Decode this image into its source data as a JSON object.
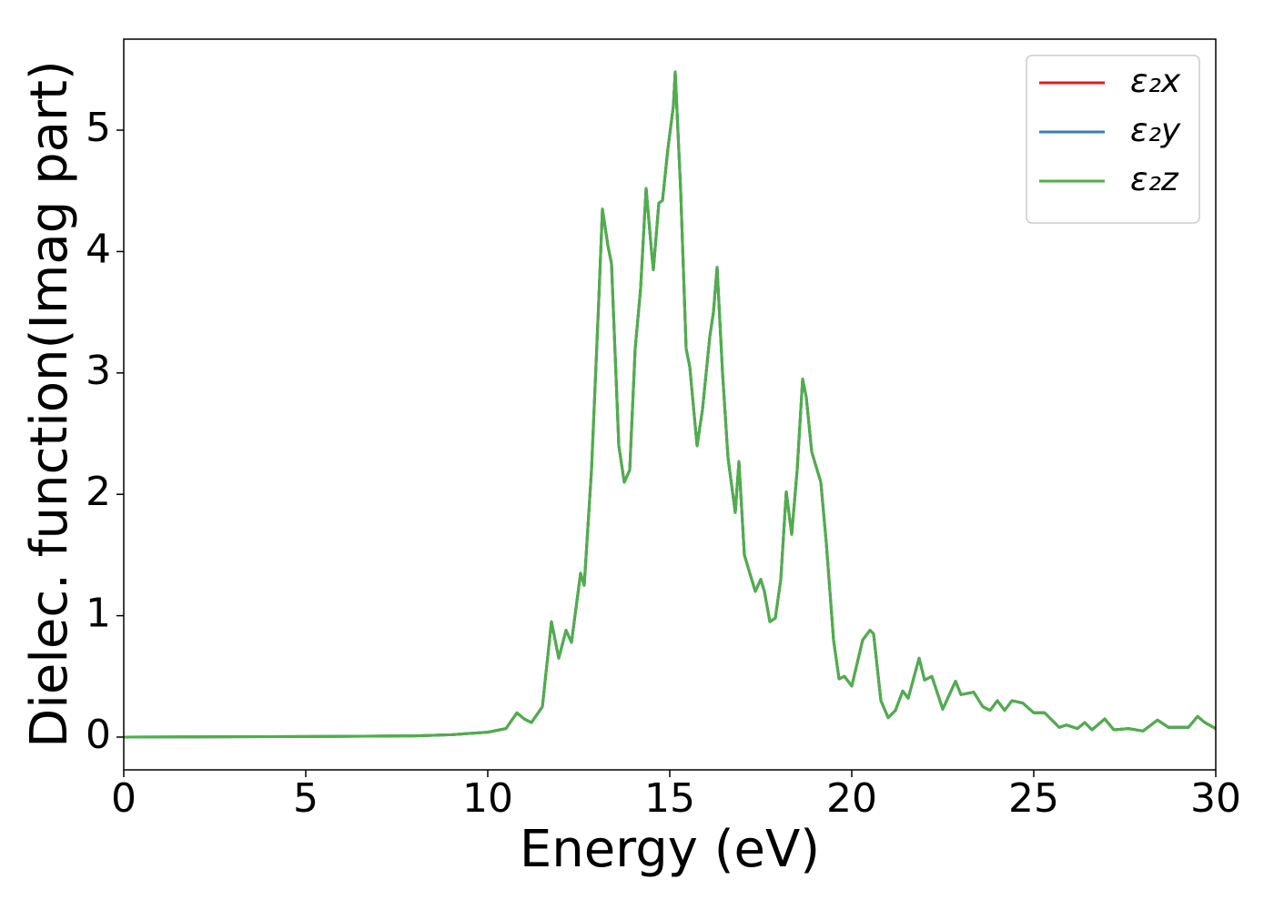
{
  "chart_data": {
    "type": "line",
    "x_label": "Energy (eV)",
    "y_label": "Dielec. function(Imag part)",
    "x": [
      0,
      5,
      8,
      9,
      10,
      10.5,
      10.8,
      11.0,
      11.2,
      11.5,
      11.75,
      11.95,
      12.15,
      12.3,
      12.55,
      12.65,
      12.85,
      13.05,
      13.15,
      13.3,
      13.4,
      13.6,
      13.75,
      13.9,
      14.05,
      14.2,
      14.35,
      14.5,
      14.55,
      14.7,
      14.8,
      14.95,
      15.1,
      15.15,
      15.3,
      15.45,
      15.55,
      15.75,
      15.9,
      16.1,
      16.2,
      16.3,
      16.45,
      16.6,
      16.8,
      16.9,
      17.05,
      17.2,
      17.35,
      17.5,
      17.6,
      17.75,
      17.9,
      18.05,
      18.2,
      18.35,
      18.5,
      18.65,
      18.75,
      18.9,
      19.15,
      19.3,
      19.5,
      19.65,
      19.8,
      20.0,
      20.3,
      20.5,
      20.6,
      20.8,
      21.0,
      21.2,
      21.4,
      21.55,
      21.85,
      22.0,
      22.2,
      22.5,
      22.85,
      23.0,
      23.35,
      23.6,
      23.8,
      24.0,
      24.2,
      24.4,
      24.7,
      25.0,
      25.3,
      25.7,
      25.9,
      26.2,
      26.4,
      26.6,
      26.95,
      27.2,
      27.6,
      28.0,
      28.4,
      28.7,
      29.0,
      29.25,
      29.5,
      29.7,
      30
    ],
    "series": [
      {
        "name": "ε₂x",
        "color": "#e41a1c",
        "values": [
          0,
          0.005,
          0.01,
          0.02,
          0.04,
          0.07,
          0.2,
          0.15,
          0.12,
          0.25,
          0.95,
          0.65,
          0.88,
          0.78,
          1.35,
          1.25,
          2.2,
          3.6,
          4.35,
          4.05,
          3.9,
          2.4,
          2.1,
          2.2,
          3.2,
          3.7,
          4.52,
          4.0,
          3.85,
          4.4,
          4.42,
          4.85,
          5.2,
          5.48,
          4.5,
          3.2,
          3.05,
          2.4,
          2.7,
          3.3,
          3.5,
          3.87,
          3.0,
          2.3,
          1.85,
          2.27,
          1.5,
          1.35,
          1.2,
          1.3,
          1.2,
          0.95,
          0.98,
          1.3,
          2.02,
          1.67,
          2.2,
          2.95,
          2.8,
          2.35,
          2.1,
          1.6,
          0.8,
          0.48,
          0.5,
          0.42,
          0.8,
          0.88,
          0.85,
          0.3,
          0.16,
          0.22,
          0.38,
          0.32,
          0.65,
          0.47,
          0.5,
          0.23,
          0.46,
          0.35,
          0.37,
          0.25,
          0.22,
          0.3,
          0.22,
          0.3,
          0.28,
          0.2,
          0.2,
          0.08,
          0.1,
          0.07,
          0.12,
          0.06,
          0.15,
          0.06,
          0.07,
          0.05,
          0.14,
          0.08,
          0.08,
          0.08,
          0.17,
          0.12,
          0.07
        ]
      },
      {
        "name": "ε₂y",
        "color": "#377eb8",
        "values": [
          0,
          0.005,
          0.01,
          0.02,
          0.04,
          0.07,
          0.2,
          0.15,
          0.12,
          0.25,
          0.95,
          0.65,
          0.88,
          0.78,
          1.35,
          1.25,
          2.2,
          3.6,
          4.35,
          4.05,
          3.9,
          2.4,
          2.1,
          2.2,
          3.2,
          3.7,
          4.52,
          4.0,
          3.85,
          4.4,
          4.42,
          4.85,
          5.2,
          5.48,
          4.5,
          3.2,
          3.05,
          2.4,
          2.7,
          3.3,
          3.5,
          3.87,
          3.0,
          2.3,
          1.85,
          2.27,
          1.5,
          1.35,
          1.2,
          1.3,
          1.2,
          0.95,
          0.98,
          1.3,
          2.02,
          1.67,
          2.2,
          2.95,
          2.8,
          2.35,
          2.1,
          1.6,
          0.8,
          0.48,
          0.5,
          0.42,
          0.8,
          0.88,
          0.85,
          0.3,
          0.16,
          0.22,
          0.38,
          0.32,
          0.65,
          0.47,
          0.5,
          0.23,
          0.46,
          0.35,
          0.37,
          0.25,
          0.22,
          0.3,
          0.22,
          0.3,
          0.28,
          0.2,
          0.2,
          0.08,
          0.1,
          0.07,
          0.12,
          0.06,
          0.15,
          0.06,
          0.07,
          0.05,
          0.14,
          0.08,
          0.08,
          0.08,
          0.17,
          0.12,
          0.07
        ]
      },
      {
        "name": "ε₂z",
        "color": "#4daf4a",
        "values": [
          0,
          0.005,
          0.01,
          0.02,
          0.04,
          0.07,
          0.2,
          0.15,
          0.12,
          0.25,
          0.95,
          0.65,
          0.88,
          0.78,
          1.35,
          1.25,
          2.2,
          3.6,
          4.35,
          4.05,
          3.9,
          2.4,
          2.1,
          2.2,
          3.2,
          3.7,
          4.52,
          4.0,
          3.85,
          4.4,
          4.42,
          4.85,
          5.2,
          5.48,
          4.5,
          3.2,
          3.05,
          2.4,
          2.7,
          3.3,
          3.5,
          3.87,
          3.0,
          2.3,
          1.85,
          2.27,
          1.5,
          1.35,
          1.2,
          1.3,
          1.2,
          0.95,
          0.98,
          1.3,
          2.02,
          1.67,
          2.2,
          2.95,
          2.8,
          2.35,
          2.1,
          1.6,
          0.8,
          0.48,
          0.5,
          0.42,
          0.8,
          0.88,
          0.85,
          0.3,
          0.16,
          0.22,
          0.38,
          0.32,
          0.65,
          0.47,
          0.5,
          0.23,
          0.46,
          0.35,
          0.37,
          0.25,
          0.22,
          0.3,
          0.22,
          0.3,
          0.28,
          0.2,
          0.2,
          0.08,
          0.1,
          0.07,
          0.12,
          0.06,
          0.15,
          0.06,
          0.07,
          0.05,
          0.14,
          0.08,
          0.08,
          0.08,
          0.17,
          0.12,
          0.07
        ]
      }
    ],
    "xlim": [
      0,
      30
    ],
    "xticks": [
      0,
      5,
      10,
      15,
      20,
      25,
      30
    ],
    "ylim": [
      -0.27,
      5.75
    ],
    "yticks": [
      0,
      1,
      2,
      3,
      4,
      5
    ],
    "legend": "upper right"
  }
}
